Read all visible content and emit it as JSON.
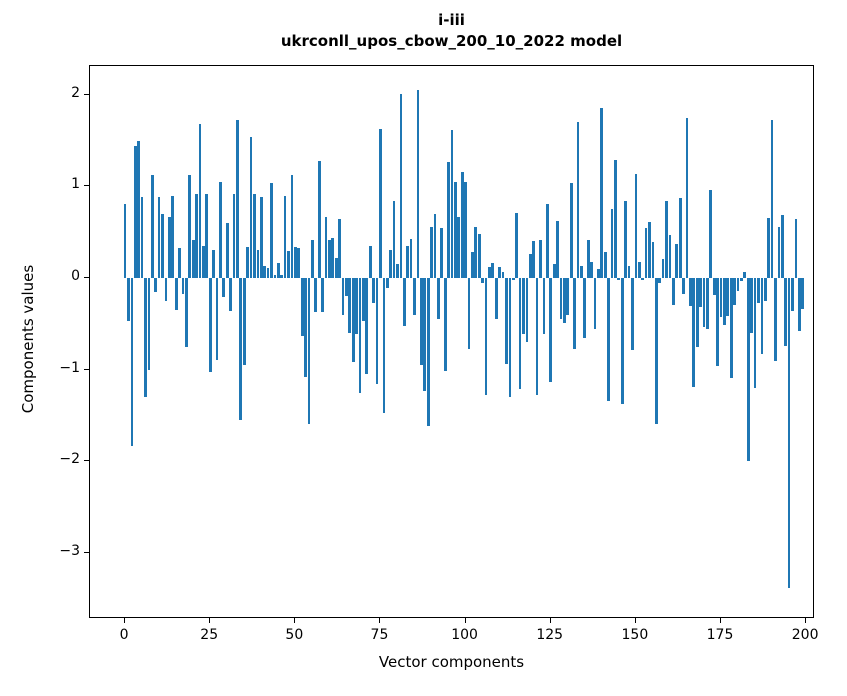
{
  "title": {
    "line1": "i-iii",
    "line2": "ukrconll_upos_cbow_200_10_2022 model"
  },
  "chart_data": {
    "type": "bar",
    "title": "i-iii",
    "subtitle": "ukrconll_upos_cbow_200_10_2022 model",
    "xlabel": "Vector components",
    "ylabel": "Components values",
    "bar_color": "#1f77b4",
    "grid": false,
    "legend": null,
    "xlim": [
      -10.3,
      202.6
    ],
    "ylim": [
      -3.72,
      2.312
    ],
    "x_ticks": [
      0,
      25,
      50,
      75,
      100,
      125,
      150,
      175,
      200
    ],
    "x_tick_labels": [
      "0",
      "25",
      "50",
      "75",
      "100",
      "125",
      "150",
      "175",
      "200"
    ],
    "y_ticks": [
      2,
      1,
      0,
      -1,
      -2,
      -3
    ],
    "y_tick_labels": [
      "2",
      "1",
      "0",
      "−1",
      "−2",
      "−3"
    ],
    "x": "vector component index 0..199",
    "values": [
      0.81,
      -0.47,
      -1.83,
      1.44,
      1.49,
      0.88,
      -1.3,
      -1.0,
      1.12,
      -0.15,
      0.88,
      0.7,
      -0.25,
      0.67,
      0.89,
      -0.35,
      0.33,
      -0.18,
      -0.75,
      1.12,
      0.41,
      0.92,
      1.68,
      0.35,
      0.92,
      -1.03,
      0.31,
      -0.9,
      1.05,
      -0.21,
      0.6,
      -0.36,
      0.92,
      1.72,
      -1.55,
      -0.95,
      0.34,
      1.54,
      0.92,
      0.3,
      0.88,
      0.13,
      0.11,
      1.04,
      0.03,
      0.16,
      0.03,
      0.89,
      0.29,
      1.12,
      0.34,
      0.33,
      -0.63,
      -1.08,
      -1.59,
      0.41,
      -0.37,
      1.28,
      -0.37,
      0.67,
      0.41,
      0.44,
      0.22,
      0.64,
      -0.4,
      -0.2,
      -0.6,
      -0.92,
      -0.61,
      -1.25,
      -0.47,
      -1.05,
      0.35,
      -0.27,
      -1.16,
      1.63,
      -1.47,
      -0.11,
      0.3,
      0.84,
      0.15,
      2.01,
      -0.52,
      0.35,
      0.42,
      -0.4,
      2.05,
      -0.95,
      -1.23,
      -1.61,
      0.56,
      0.7,
      -0.45,
      0.54,
      -1.01,
      1.27,
      1.61,
      1.05,
      0.66,
      1.16,
      1.05,
      -0.78,
      0.28,
      0.56,
      0.48,
      -0.06,
      -1.28,
      0.12,
      0.16,
      -0.45,
      0.12,
      0.06,
      -0.94,
      -1.3,
      -0.02,
      0.71,
      -1.21,
      -0.61,
      -0.7,
      0.26,
      0.4,
      -1.28,
      0.41,
      -0.61,
      0.81,
      -1.14,
      0.15,
      0.62,
      -0.45,
      -0.49,
      -0.4,
      1.04,
      -0.78,
      1.7,
      0.13,
      -0.65,
      0.41,
      0.17,
      -0.56,
      0.1,
      1.85,
      0.28,
      -1.34,
      0.75,
      1.29,
      -0.02,
      -1.37,
      0.84,
      0.13,
      -0.79,
      1.13,
      0.17,
      -0.02,
      0.55,
      0.61,
      0.39,
      -1.59,
      -0.05,
      0.21,
      0.84,
      0.47,
      -0.3,
      0.37,
      0.87,
      -0.17,
      1.74,
      -0.31,
      -1.19,
      -0.75,
      -0.32,
      -0.54,
      -0.56,
      0.96,
      -0.19,
      -0.96,
      -0.43,
      -0.51,
      -0.41,
      -1.09,
      -0.29,
      -0.14,
      -0.03,
      0.07,
      -2.0,
      -0.6,
      -1.2,
      -0.27,
      -0.83,
      -0.25,
      0.65,
      1.72,
      -0.91,
      0.56,
      0.69,
      -0.74,
      -3.38,
      -0.36,
      0.64,
      -0.58,
      -0.34
    ]
  }
}
